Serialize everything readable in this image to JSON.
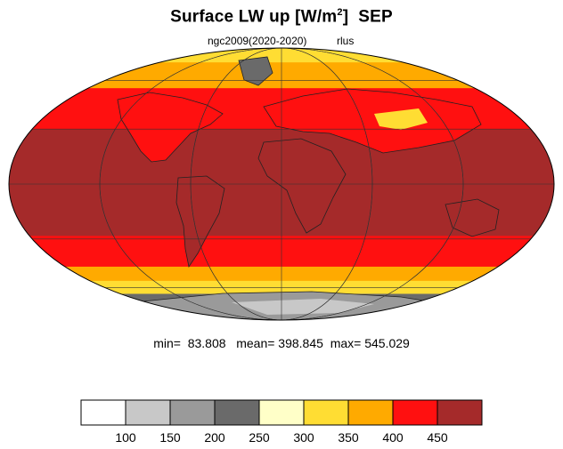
{
  "title": {
    "text": "Surface LW up [W/m",
    "sup": "2",
    "close": "]",
    "month": "SEP"
  },
  "subtitle": {
    "left": "ngc2009(2020-2020)",
    "right": "rlus"
  },
  "stats": {
    "min_label": "min=",
    "min": "83.808",
    "mean_label": "mean=",
    "mean": "398.845",
    "max_label": "max=",
    "max": "545.029"
  },
  "colorbar": {
    "colors": [
      "#ffffff",
      "#c8c8c8",
      "#9a9a9a",
      "#6a6a6a",
      "#ffffc8",
      "#ffdd33",
      "#ffaa00",
      "#ff1010",
      "#a52a2a"
    ],
    "ticks": [
      "100",
      "150",
      "200",
      "250",
      "300",
      "350",
      "400",
      "450"
    ]
  },
  "map": {
    "projection": "mollweide",
    "latitude_bands": [
      {
        "from": -90,
        "to": -78,
        "range": "150-200"
      },
      {
        "from": -78,
        "to": -64,
        "range": "200-250"
      },
      {
        "from": -64,
        "to": -55,
        "range": "300-350"
      },
      {
        "from": -55,
        "to": -46,
        "range": "350-400"
      },
      {
        "from": -46,
        "to": -28,
        "range": "400-450"
      },
      {
        "from": -28,
        "to": 30,
        "range": ">450"
      },
      {
        "from": 30,
        "to": 55,
        "range": "400-450"
      },
      {
        "from": 55,
        "to": 74,
        "range": "350-400"
      },
      {
        "from": 74,
        "to": 90,
        "range": "300-350"
      }
    ]
  }
}
